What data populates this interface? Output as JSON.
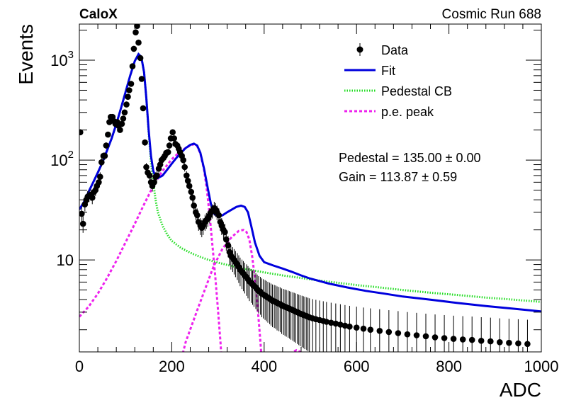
{
  "chart_data": {
    "type": "scatter",
    "experiment_label": "CaloX",
    "run_label": "Cosmic Run 688",
    "xlabel": "ADC",
    "ylabel": "Events",
    "xlim": [
      0,
      1000
    ],
    "ylim": [
      1.2,
      2300
    ],
    "log_y": true,
    "grid": false,
    "legend_position": "top-right",
    "x_ticks": [
      0,
      200,
      400,
      600,
      800,
      1000
    ],
    "x_tick_labels": [
      "0",
      "200",
      "400",
      "600",
      "800",
      "1000"
    ],
    "y_major_ticks": [
      10,
      100,
      1000
    ],
    "y_tick_labels": [
      "10",
      "10",
      "10"
    ],
    "y_tick_exponents": [
      "",
      "2",
      "3"
    ],
    "legend": [
      {
        "key": "data",
        "label": "Data",
        "style": "marker"
      },
      {
        "key": "fit",
        "label": "Fit",
        "style": "solid",
        "color": "#0000dd"
      },
      {
        "key": "pedestal",
        "label": "Pedestal CB",
        "style": "dotted",
        "color": "#22dd22"
      },
      {
        "key": "pe",
        "label": "p.e. peak",
        "style": "dashed",
        "color": "#ee22ee"
      }
    ],
    "fit_results": [
      "Pedestal = 135.00 ± 0.00",
      "Gain = 113.87 ± 0.59"
    ],
    "colors": {
      "data": "#000000",
      "fit": "#0000dd",
      "pedestal": "#22dd22",
      "pe": "#ee22ee"
    },
    "data_points": [
      [
        2,
        190
      ],
      [
        5,
        29
      ],
      [
        8,
        23
      ],
      [
        12,
        36
      ],
      [
        15,
        40
      ],
      [
        18,
        43
      ],
      [
        21,
        44
      ],
      [
        25,
        45
      ],
      [
        28,
        42
      ],
      [
        32,
        48
      ],
      [
        35,
        50
      ],
      [
        38,
        55
      ],
      [
        42,
        60
      ],
      [
        45,
        68
      ],
      [
        48,
        95
      ],
      [
        52,
        110
      ],
      [
        55,
        110
      ],
      [
        58,
        140
      ],
      [
        62,
        180
      ],
      [
        65,
        240
      ],
      [
        68,
        270
      ],
      [
        72,
        270
      ],
      [
        75,
        245
      ],
      [
        78,
        230
      ],
      [
        82,
        240
      ],
      [
        85,
        220
      ],
      [
        88,
        200
      ],
      [
        92,
        230
      ],
      [
        95,
        260
      ],
      [
        98,
        300
      ],
      [
        102,
        360
      ],
      [
        105,
        430
      ],
      [
        108,
        500
      ],
      [
        112,
        580
      ],
      [
        115,
        870
      ],
      [
        118,
        1300
      ],
      [
        122,
        1900
      ],
      [
        125,
        2200
      ],
      [
        128,
        1500
      ],
      [
        132,
        1050
      ],
      [
        135,
        650
      ],
      [
        138,
        330
      ],
      [
        142,
        150
      ],
      [
        145,
        85
      ],
      [
        148,
        75
      ],
      [
        152,
        70
      ],
      [
        155,
        60
      ],
      [
        158,
        55
      ],
      [
        162,
        60
      ],
      [
        165,
        68
      ],
      [
        168,
        70
      ],
      [
        172,
        82
      ],
      [
        175,
        90
      ],
      [
        178,
        100
      ],
      [
        182,
        105
      ],
      [
        185,
        110
      ],
      [
        188,
        118
      ],
      [
        192,
        120
      ],
      [
        195,
        140
      ],
      [
        198,
        165
      ],
      [
        202,
        190
      ],
      [
        205,
        165
      ],
      [
        208,
        145
      ],
      [
        212,
        140
      ],
      [
        215,
        130
      ],
      [
        218,
        120
      ],
      [
        222,
        110
      ],
      [
        225,
        100
      ],
      [
        228,
        85
      ],
      [
        232,
        70
      ],
      [
        235,
        62
      ],
      [
        238,
        55
      ],
      [
        242,
        48
      ],
      [
        245,
        42
      ],
      [
        248,
        35
      ],
      [
        252,
        30
      ],
      [
        255,
        28
      ],
      [
        258,
        24
      ],
      [
        262,
        22
      ],
      [
        265,
        21
      ],
      [
        268,
        22
      ],
      [
        272,
        24
      ],
      [
        275,
        25
      ],
      [
        278,
        26
      ],
      [
        282,
        28
      ],
      [
        285,
        30
      ],
      [
        288,
        31
      ],
      [
        292,
        33
      ],
      [
        295,
        32
      ],
      [
        298,
        30
      ],
      [
        302,
        28
      ],
      [
        305,
        24
      ],
      [
        308,
        22
      ],
      [
        312,
        20
      ],
      [
        315,
        19
      ],
      [
        318,
        16
      ],
      [
        322,
        14
      ],
      [
        325,
        12
      ],
      [
        328,
        11
      ],
      [
        332,
        10.5
      ],
      [
        335,
        10
      ],
      [
        338,
        9.5
      ],
      [
        342,
        9
      ],
      [
        345,
        8.5
      ],
      [
        348,
        8.0
      ],
      [
        352,
        7.6
      ],
      [
        355,
        7.3
      ],
      [
        358,
        7.0
      ],
      [
        362,
        6.7
      ],
      [
        365,
        6.4
      ],
      [
        368,
        6.1
      ],
      [
        372,
        5.9
      ],
      [
        375,
        5.7
      ],
      [
        378,
        5.5
      ],
      [
        382,
        5.3
      ],
      [
        385,
        5.1
      ],
      [
        388,
        4.9
      ],
      [
        392,
        4.8
      ],
      [
        395,
        4.6
      ],
      [
        398,
        4.5
      ],
      [
        402,
        4.4
      ],
      [
        405,
        4.3
      ],
      [
        408,
        4.2
      ],
      [
        412,
        4.1
      ],
      [
        415,
        4.0
      ],
      [
        418,
        3.9
      ],
      [
        422,
        3.85
      ],
      [
        425,
        3.8
      ],
      [
        428,
        3.7
      ],
      [
        432,
        3.65
      ],
      [
        435,
        3.6
      ],
      [
        438,
        3.5
      ],
      [
        442,
        3.45
      ],
      [
        445,
        3.4
      ],
      [
        448,
        3.35
      ],
      [
        452,
        3.3
      ],
      [
        455,
        3.25
      ],
      [
        458,
        3.2
      ],
      [
        462,
        3.15
      ],
      [
        465,
        3.1
      ],
      [
        468,
        3.05
      ],
      [
        472,
        3.0
      ],
      [
        475,
        2.95
      ],
      [
        478,
        2.9
      ],
      [
        482,
        2.86
      ],
      [
        485,
        2.82
      ],
      [
        488,
        2.78
      ],
      [
        492,
        2.74
      ],
      [
        495,
        2.7
      ],
      [
        498,
        2.66
      ],
      [
        505,
        2.6
      ],
      [
        512,
        2.55
      ],
      [
        520,
        2.5
      ],
      [
        528,
        2.45
      ],
      [
        535,
        2.4
      ],
      [
        545,
        2.35
      ],
      [
        555,
        2.3
      ],
      [
        565,
        2.25
      ],
      [
        575,
        2.2
      ],
      [
        585,
        2.15
      ],
      [
        600,
        2.1
      ],
      [
        615,
        2.05
      ],
      [
        630,
        2.0
      ],
      [
        650,
        1.95
      ],
      [
        670,
        1.9
      ],
      [
        690,
        1.85
      ],
      [
        710,
        1.8
      ],
      [
        730,
        1.76
      ],
      [
        750,
        1.72
      ],
      [
        770,
        1.68
      ],
      [
        790,
        1.65
      ],
      [
        810,
        1.62
      ],
      [
        830,
        1.6
      ],
      [
        850,
        1.58
      ],
      [
        870,
        1.55
      ],
      [
        890,
        1.53
      ],
      [
        910,
        1.5
      ],
      [
        930,
        1.48
      ],
      [
        950,
        1.46
      ],
      [
        970,
        1.44
      ]
    ],
    "fit_curve": [
      [
        0,
        32
      ],
      [
        10,
        38
      ],
      [
        20,
        48
      ],
      [
        30,
        60
      ],
      [
        40,
        75
      ],
      [
        50,
        95
      ],
      [
        60,
        125
      ],
      [
        70,
        165
      ],
      [
        80,
        230
      ],
      [
        90,
        330
      ],
      [
        100,
        480
      ],
      [
        110,
        700
      ],
      [
        120,
        980
      ],
      [
        128,
        1150
      ],
      [
        134,
        1080
      ],
      [
        140,
        760
      ],
      [
        145,
        420
      ],
      [
        150,
        200
      ],
      [
        155,
        110
      ],
      [
        160,
        78
      ],
      [
        165,
        68
      ],
      [
        170,
        66
      ],
      [
        180,
        70
      ],
      [
        190,
        80
      ],
      [
        200,
        92
      ],
      [
        210,
        105
      ],
      [
        220,
        118
      ],
      [
        230,
        132
      ],
      [
        240,
        142
      ],
      [
        248,
        146
      ],
      [
        255,
        140
      ],
      [
        262,
        118
      ],
      [
        270,
        82
      ],
      [
        278,
        52
      ],
      [
        285,
        36
      ],
      [
        292,
        29
      ],
      [
        300,
        27
      ],
      [
        310,
        28
      ],
      [
        320,
        30
      ],
      [
        330,
        32
      ],
      [
        340,
        34
      ],
      [
        350,
        35
      ],
      [
        358,
        34
      ],
      [
        365,
        30
      ],
      [
        372,
        22
      ],
      [
        380,
        15
      ],
      [
        390,
        11
      ],
      [
        400,
        9.5
      ],
      [
        420,
        8.8
      ],
      [
        440,
        8.2
      ],
      [
        460,
        7.6
      ],
      [
        480,
        7.0
      ],
      [
        500,
        6.5
      ],
      [
        540,
        5.8
      ],
      [
        580,
        5.3
      ],
      [
        620,
        4.9
      ],
      [
        660,
        4.6
      ],
      [
        700,
        4.3
      ],
      [
        760,
        4.0
      ],
      [
        820,
        3.7
      ],
      [
        880,
        3.45
      ],
      [
        940,
        3.25
      ],
      [
        1000,
        3.05
      ]
    ],
    "pedestal_curve": [
      [
        0,
        32
      ],
      [
        10,
        38
      ],
      [
        20,
        48
      ],
      [
        30,
        60
      ],
      [
        40,
        75
      ],
      [
        50,
        95
      ],
      [
        60,
        125
      ],
      [
        70,
        165
      ],
      [
        80,
        230
      ],
      [
        90,
        330
      ],
      [
        100,
        480
      ],
      [
        110,
        700
      ],
      [
        120,
        980
      ],
      [
        128,
        1150
      ],
      [
        134,
        1080
      ],
      [
        140,
        760
      ],
      [
        145,
        420
      ],
      [
        150,
        190
      ],
      [
        155,
        95
      ],
      [
        160,
        60
      ],
      [
        165,
        40
      ],
      [
        170,
        30
      ],
      [
        180,
        22
      ],
      [
        190,
        18
      ],
      [
        200,
        15.5
      ],
      [
        220,
        13.2
      ],
      [
        240,
        11.8
      ],
      [
        260,
        10.8
      ],
      [
        280,
        10.0
      ],
      [
        300,
        9.4
      ],
      [
        330,
        8.7
      ],
      [
        360,
        8.1
      ],
      [
        400,
        7.5
      ],
      [
        440,
        7.0
      ],
      [
        480,
        6.6
      ],
      [
        520,
        6.2
      ],
      [
        560,
        5.9
      ],
      [
        600,
        5.6
      ],
      [
        650,
        5.3
      ],
      [
        700,
        5.0
      ],
      [
        760,
        4.7
      ],
      [
        820,
        4.45
      ],
      [
        880,
        4.2
      ],
      [
        940,
        4.0
      ],
      [
        1000,
        3.8
      ]
    ],
    "pe_peak_curves": [
      [
        [
          0,
          2.7
        ],
        [
          20,
          3.4
        ],
        [
          40,
          4.6
        ],
        [
          60,
          6.6
        ],
        [
          80,
          9.8
        ],
        [
          100,
          15
        ],
        [
          120,
          23
        ],
        [
          140,
          36
        ],
        [
          160,
          55
        ],
        [
          180,
          78
        ],
        [
          200,
          102
        ],
        [
          215,
          118
        ],
        [
          230,
          132
        ],
        [
          240,
          140
        ],
        [
          248,
          144
        ],
        [
          255,
          138
        ],
        [
          262,
          116
        ],
        [
          270,
          80
        ],
        [
          276,
          50
        ],
        [
          282,
          28
        ],
        [
          288,
          14
        ],
        [
          294,
          7
        ],
        [
          300,
          3.2
        ],
        [
          306,
          1.4
        ],
        [
          310,
          0.6
        ]
      ],
      [
        [
          205,
          0.3
        ],
        [
          215,
          0.8
        ],
        [
          230,
          1.5
        ],
        [
          250,
          2.7
        ],
        [
          270,
          4.8
        ],
        [
          290,
          8.5
        ],
        [
          310,
          13
        ],
        [
          330,
          17
        ],
        [
          345,
          19.5
        ],
        [
          355,
          20
        ],
        [
          362,
          19
        ],
        [
          368,
          16
        ],
        [
          374,
          11
        ],
        [
          380,
          6.5
        ],
        [
          386,
          3.3
        ],
        [
          392,
          1.5
        ],
        [
          398,
          0.6
        ]
      ],
      [
        [
          420,
          0.5
        ],
        [
          440,
          0.9
        ],
        [
          460,
          1.18
        ],
        [
          470,
          1.25
        ],
        [
          478,
          1.2
        ],
        [
          486,
          1.0
        ],
        [
          494,
          0.7
        ],
        [
          500,
          0.5
        ]
      ]
    ]
  }
}
